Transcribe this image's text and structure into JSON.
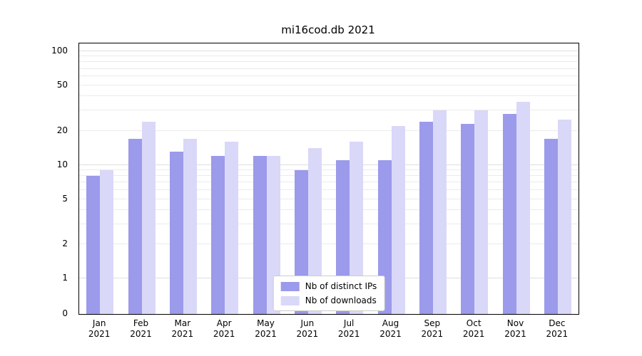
{
  "title": "mi16cod.db 2021",
  "chart_data": {
    "type": "bar",
    "title": "mi16cod.db 2021",
    "x_months": [
      "Jan",
      "Feb",
      "Mar",
      "Apr",
      "May",
      "Jun",
      "Jul",
      "Aug",
      "Sep",
      "Oct",
      "Nov",
      "Dec"
    ],
    "x_year": "2021",
    "y_ticks": [
      0,
      1,
      2,
      5,
      10,
      20,
      50,
      100
    ],
    "ylim": [
      0,
      100
    ],
    "y_scale": "log above 1, linear 0 to 1",
    "grid": true,
    "legend_position": "lower center",
    "series": [
      {
        "name": "Nb of distinct IPs",
        "color": "#9b9aeb",
        "values": [
          8,
          17,
          13,
          12,
          12,
          9,
          11,
          11,
          24,
          23,
          28,
          17
        ]
      },
      {
        "name": "Nb of downloads",
        "color": "#d9d8f8",
        "values": [
          9,
          24,
          17,
          16,
          12,
          14,
          16,
          22,
          30,
          30,
          36,
          25
        ]
      }
    ]
  }
}
